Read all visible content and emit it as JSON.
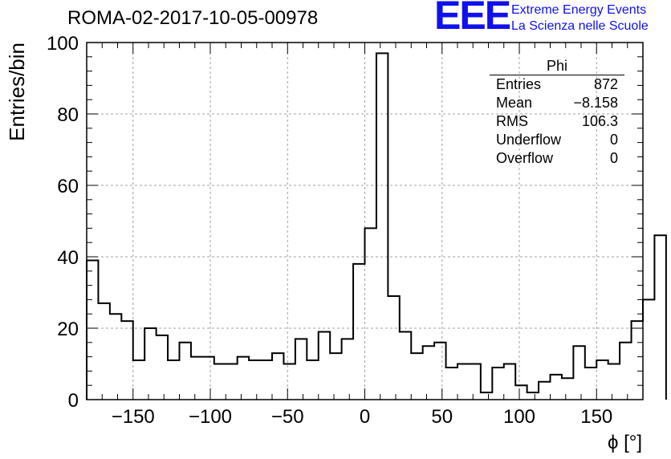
{
  "header": {
    "title": "ROMA-02-2017-10-05-00978",
    "logo_letters": "EEE",
    "logo_line1": "Extreme Energy Events",
    "logo_line2": "La Scienza nelle Scuole"
  },
  "stats": {
    "name": "Phi",
    "rows": [
      {
        "label": "Entries",
        "value": "872"
      },
      {
        "label": "Mean",
        "value": "−8.158"
      },
      {
        "label": "RMS",
        "value": "106.3"
      },
      {
        "label": "Underflow",
        "value": "0"
      },
      {
        "label": "Overflow",
        "value": "0"
      }
    ]
  },
  "colors": {
    "line": "#000000",
    "grid": "#a0a0a0",
    "logo": "#1010ee"
  },
  "chart_data": {
    "type": "histogram",
    "title": "ROMA-02-2017-10-05-00978",
    "xlabel": "ϕ [°]",
    "ylabel": "Entries/bin",
    "xlim": [
      -180,
      180
    ],
    "ylim": [
      0,
      100
    ],
    "bin_width": 7.5,
    "bin_edges_start": -180,
    "values": [
      39,
      27,
      24,
      22,
      11,
      20,
      18,
      11,
      16,
      12,
      12,
      10,
      10,
      12,
      11,
      11,
      13,
      10,
      17,
      11,
      19,
      13,
      17,
      38,
      48,
      97,
      29,
      19,
      13,
      15,
      16,
      9,
      10,
      10,
      2,
      9,
      10,
      4,
      2,
      5,
      7,
      6,
      15,
      9,
      11,
      10,
      16,
      22,
      28,
      46
    ],
    "x_ticks": [
      -150,
      -100,
      -50,
      0,
      50,
      100,
      150
    ],
    "x_tick_labels": [
      "−150",
      "−100",
      "−50",
      "0",
      "50",
      "100",
      "150"
    ],
    "y_ticks": [
      0,
      20,
      40,
      60,
      80,
      100
    ],
    "y_tick_labels": [
      "0",
      "20",
      "40",
      "60",
      "80",
      "100"
    ],
    "grid": true
  }
}
